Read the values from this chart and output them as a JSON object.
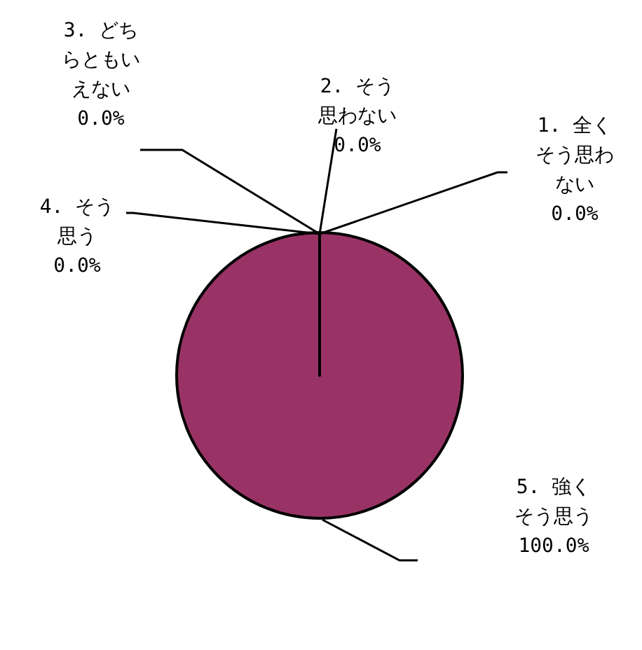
{
  "chart_data": {
    "type": "pie",
    "categories": [
      "1. 全くそう思わない",
      "2. そう思わない",
      "3. どちらともいえない",
      "4. そう思う",
      "5. 強くそう思う"
    ],
    "values": [
      0,
      0,
      0,
      0,
      100
    ],
    "colors": [
      "#993366",
      "#993366",
      "#993366",
      "#993366",
      "#993366"
    ],
    "value_labels": [
      "0.0%",
      "0.0%",
      "0.0%",
      "0.0%",
      "100.0%"
    ]
  }
}
